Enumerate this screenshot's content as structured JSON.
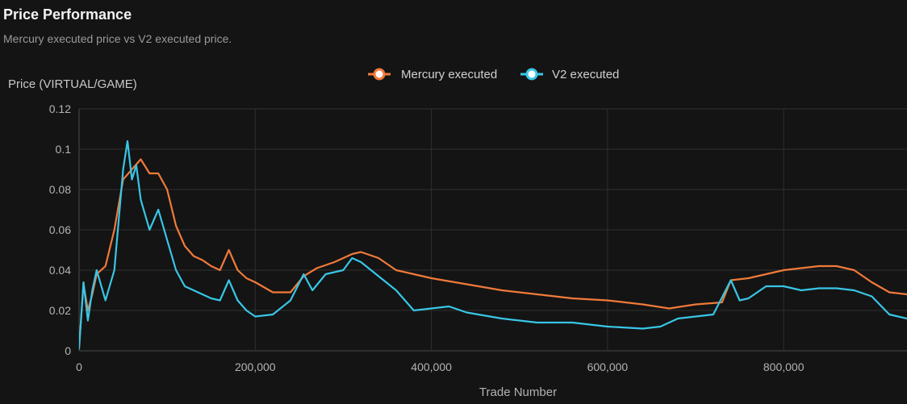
{
  "header": {
    "title": "Price Performance",
    "subtitle": "Mercury executed price vs V2 executed price."
  },
  "colors": {
    "background": "#141414",
    "grid": "#2f2f2f",
    "axis_text": "#b3b3b3",
    "series_mercury": "#f07a3a",
    "series_v2": "#38c6e6"
  },
  "chart_data": {
    "type": "line",
    "xlabel": "Trade Number",
    "ylabel": "Price (VIRTUAL/GAME)",
    "xlim": [
      0,
      940000
    ],
    "ylim": [
      0,
      0.12
    ],
    "x_ticks": [
      0,
      200000,
      400000,
      600000,
      800000
    ],
    "x_tick_labels": [
      "0",
      "200,000",
      "400,000",
      "600,000",
      "800,000"
    ],
    "y_ticks": [
      0,
      0.02,
      0.04,
      0.06,
      0.08,
      0.1,
      0.12
    ],
    "y_tick_labels": [
      "0",
      "0.02",
      "0.04",
      "0.06",
      "0.08",
      "0.1",
      "0.12"
    ],
    "grid": true,
    "legend_position": "top-center",
    "series": [
      {
        "name": "Mercury executed",
        "color": "#f07a3a",
        "x": [
          0,
          5000,
          10000,
          15000,
          20000,
          30000,
          40000,
          50000,
          60000,
          70000,
          80000,
          90000,
          100000,
          110000,
          120000,
          130000,
          140000,
          150000,
          160000,
          170000,
          180000,
          190000,
          200000,
          220000,
          240000,
          255000,
          270000,
          290000,
          310000,
          320000,
          340000,
          360000,
          380000,
          400000,
          440000,
          480000,
          520000,
          560000,
          600000,
          640000,
          670000,
          700000,
          730000,
          740000,
          760000,
          780000,
          800000,
          820000,
          840000,
          860000,
          880000,
          900000,
          920000,
          940000
        ],
        "y": [
          0.002,
          0.033,
          0.02,
          0.028,
          0.038,
          0.042,
          0.06,
          0.085,
          0.09,
          0.095,
          0.088,
          0.088,
          0.08,
          0.062,
          0.052,
          0.047,
          0.045,
          0.042,
          0.04,
          0.05,
          0.04,
          0.036,
          0.034,
          0.029,
          0.029,
          0.037,
          0.041,
          0.044,
          0.048,
          0.049,
          0.046,
          0.04,
          0.038,
          0.036,
          0.033,
          0.03,
          0.028,
          0.026,
          0.025,
          0.023,
          0.021,
          0.023,
          0.024,
          0.035,
          0.036,
          0.038,
          0.04,
          0.041,
          0.042,
          0.042,
          0.04,
          0.034,
          0.029,
          0.028
        ]
      },
      {
        "name": "V2 executed",
        "color": "#38c6e6",
        "x": [
          0,
          5000,
          10000,
          15000,
          20000,
          30000,
          40000,
          50000,
          55000,
          60000,
          65000,
          70000,
          80000,
          90000,
          100000,
          110000,
          120000,
          130000,
          140000,
          150000,
          160000,
          170000,
          180000,
          190000,
          200000,
          220000,
          240000,
          255000,
          265000,
          280000,
          300000,
          310000,
          320000,
          340000,
          360000,
          380000,
          400000,
          420000,
          440000,
          480000,
          520000,
          560000,
          600000,
          640000,
          660000,
          680000,
          700000,
          720000,
          740000,
          750000,
          760000,
          780000,
          800000,
          820000,
          840000,
          860000,
          880000,
          900000,
          920000,
          940000
        ],
        "y": [
          0.001,
          0.034,
          0.015,
          0.03,
          0.04,
          0.025,
          0.04,
          0.09,
          0.104,
          0.085,
          0.092,
          0.075,
          0.06,
          0.07,
          0.055,
          0.04,
          0.032,
          0.03,
          0.028,
          0.026,
          0.025,
          0.035,
          0.025,
          0.02,
          0.017,
          0.018,
          0.025,
          0.038,
          0.03,
          0.038,
          0.04,
          0.046,
          0.044,
          0.037,
          0.03,
          0.02,
          0.021,
          0.022,
          0.019,
          0.016,
          0.014,
          0.014,
          0.012,
          0.011,
          0.012,
          0.016,
          0.017,
          0.018,
          0.035,
          0.025,
          0.026,
          0.032,
          0.032,
          0.03,
          0.031,
          0.031,
          0.03,
          0.027,
          0.018,
          0.016
        ]
      }
    ]
  }
}
